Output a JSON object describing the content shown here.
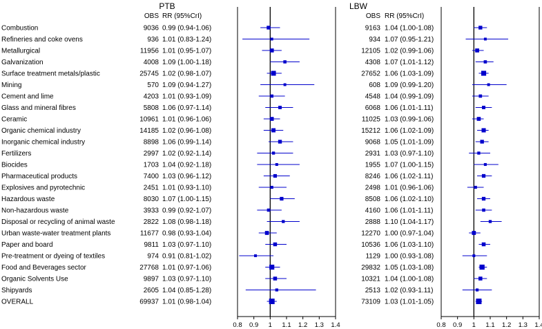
{
  "chart_data": [
    {
      "type": "forest",
      "title": "PTB",
      "column_headers": {
        "n": "OBS",
        "estimate": "RR (95%CrI)"
      },
      "reference_line": 1,
      "xlim": [
        0.8,
        1.4
      ],
      "xticks": [
        "0.8",
        "0.9",
        "1",
        "1.1",
        "1.2",
        "1.3",
        "1.4"
      ],
      "rows": [
        {
          "label": "Combustion",
          "obs": "9036",
          "text": "0.99 (0.94-1.06)",
          "rr": 0.99,
          "lo": 0.94,
          "hi": 1.06
        },
        {
          "label": "Refineries and coke ovens",
          "obs": "936",
          "text": "1.01 (0.83-1.24)",
          "rr": 1.01,
          "lo": 0.83,
          "hi": 1.24
        },
        {
          "label": "Metallurgical",
          "obs": "11956",
          "text": "1.01 (0.95-1.07)",
          "rr": 1.01,
          "lo": 0.95,
          "hi": 1.07
        },
        {
          "label": "Galvanization",
          "obs": "4008",
          "text": "1.09 (1.00-1.18)",
          "rr": 1.09,
          "lo": 1.0,
          "hi": 1.18
        },
        {
          "label": "Surface treatment metals/plastic",
          "obs": "25745",
          "text": "1.02 (0.98-1.07)",
          "rr": 1.02,
          "lo": 0.98,
          "hi": 1.07
        },
        {
          "label": "Mining",
          "obs": "570",
          "text": "1.09 (0.94-1.27)",
          "rr": 1.09,
          "lo": 0.94,
          "hi": 1.27
        },
        {
          "label": "Cement and lime",
          "obs": "4203",
          "text": "1.01 (0.93-1.09)",
          "rr": 1.01,
          "lo": 0.93,
          "hi": 1.09
        },
        {
          "label": "Glass and mineral fibres",
          "obs": "5808",
          "text": "1.06 (0.97-1.14)",
          "rr": 1.06,
          "lo": 0.97,
          "hi": 1.14
        },
        {
          "label": "Ceramic",
          "obs": "10961",
          "text": "1.01 (0.96-1.06)",
          "rr": 1.01,
          "lo": 0.96,
          "hi": 1.06
        },
        {
          "label": "Organic chemical industry",
          "obs": "14185",
          "text": "1.02 (0.96-1.08)",
          "rr": 1.02,
          "lo": 0.96,
          "hi": 1.08
        },
        {
          "label": "Inorganic chemical industry",
          "obs": "8898",
          "text": "1.06 (0.99-1.14)",
          "rr": 1.06,
          "lo": 0.99,
          "hi": 1.14
        },
        {
          "label": "Fertilizers",
          "obs": "2997",
          "text": "1.02 (0.92-1.14)",
          "rr": 1.02,
          "lo": 0.92,
          "hi": 1.14
        },
        {
          "label": "Biocides",
          "obs": "1703",
          "text": "1.04 (0.92-1.18)",
          "rr": 1.04,
          "lo": 0.92,
          "hi": 1.18
        },
        {
          "label": "Pharmaceutical products",
          "obs": "7400",
          "text": "1.03 (0.96-1.12)",
          "rr": 1.03,
          "lo": 0.96,
          "hi": 1.12
        },
        {
          "label": "Explosives and pyrotechnic",
          "obs": "2451",
          "text": "1.01 (0.93-1.10)",
          "rr": 1.01,
          "lo": 0.93,
          "hi": 1.1
        },
        {
          "label": "Hazardous waste",
          "obs": "8030",
          "text": "1.07 (1.00-1.15)",
          "rr": 1.07,
          "lo": 1.0,
          "hi": 1.15
        },
        {
          "label": "Non-hazardous waste",
          "obs": "3933",
          "text": "0.99 (0.92-1.07)",
          "rr": 0.99,
          "lo": 0.92,
          "hi": 1.07
        },
        {
          "label": "Disposal or recycling of animal waste",
          "obs": "2822",
          "text": "1.08 (0.98-1.18)",
          "rr": 1.08,
          "lo": 0.98,
          "hi": 1.18
        },
        {
          "label": "Urban waste-water treatment plants",
          "obs": "11677",
          "text": "0.98 (0.93-1.04)",
          "rr": 0.98,
          "lo": 0.93,
          "hi": 1.04
        },
        {
          "label": "Paper and board",
          "obs": "9811",
          "text": "1.03 (0.97-1.10)",
          "rr": 1.03,
          "lo": 0.97,
          "hi": 1.1
        },
        {
          "label": "Pre-treatment or dyeing of textiles",
          "obs": "974",
          "text": "0.91 (0.81-1.02)",
          "rr": 0.91,
          "lo": 0.81,
          "hi": 1.02
        },
        {
          "label": "Food and Beverages sector",
          "obs": "27768",
          "text": "1.01 (0.97-1.06)",
          "rr": 1.01,
          "lo": 0.97,
          "hi": 1.06
        },
        {
          "label": "Organic Solvents Use",
          "obs": "9897",
          "text": "1.03 (0.97-1.10)",
          "rr": 1.03,
          "lo": 0.97,
          "hi": 1.1
        },
        {
          "label": "Shipyards",
          "obs": "2605",
          "text": "1.04 (0.85-1.28)",
          "rr": 1.04,
          "lo": 0.85,
          "hi": 1.28
        },
        {
          "label": "OVERALL",
          "obs": "69937",
          "text": "1.01 (0.98-1.04)",
          "rr": 1.01,
          "lo": 0.98,
          "hi": 1.04
        }
      ]
    },
    {
      "type": "forest",
      "title": "LBW",
      "column_headers": {
        "n": "OBS",
        "estimate": "RR (95%CrI)"
      },
      "reference_line": 1,
      "xlim": [
        0.8,
        1.4
      ],
      "xticks": [
        "0.8",
        "0.9",
        "1",
        "1.1",
        "1.2",
        "1.3",
        "1.4"
      ],
      "rows": [
        {
          "label": "Combustion",
          "obs": "9163",
          "text": "1.04 (1.00-1.08)",
          "rr": 1.04,
          "lo": 1.0,
          "hi": 1.08
        },
        {
          "label": "Refineries and coke ovens",
          "obs": "934",
          "text": "1.07 (0.95-1.21)",
          "rr": 1.07,
          "lo": 0.95,
          "hi": 1.21
        },
        {
          "label": "Metallurgical",
          "obs": "12105",
          "text": "1.02 (0.99-1.06)",
          "rr": 1.02,
          "lo": 0.99,
          "hi": 1.06
        },
        {
          "label": "Galvanization",
          "obs": "4308",
          "text": "1.07 (1.01-1.12)",
          "rr": 1.07,
          "lo": 1.01,
          "hi": 1.12
        },
        {
          "label": "Surface treatment metals/plastic",
          "obs": "27652",
          "text": "1.06 (1.03-1.09)",
          "rr": 1.06,
          "lo": 1.03,
          "hi": 1.09
        },
        {
          "label": "Mining",
          "obs": "608",
          "text": "1.09 (0.99-1.20)",
          "rr": 1.09,
          "lo": 0.99,
          "hi": 1.2
        },
        {
          "label": "Cement and lime",
          "obs": "4548",
          "text": "1.04 (0.99-1.09)",
          "rr": 1.04,
          "lo": 0.99,
          "hi": 1.09
        },
        {
          "label": "Glass and mineral fibres",
          "obs": "6068",
          "text": "1.06 (1.01-1.11)",
          "rr": 1.06,
          "lo": 1.01,
          "hi": 1.11
        },
        {
          "label": "Ceramic",
          "obs": "11025",
          "text": "1.03 (0.99-1.06)",
          "rr": 1.03,
          "lo": 0.99,
          "hi": 1.06
        },
        {
          "label": "Organic chemical industry",
          "obs": "15212",
          "text": "1.06 (1.02-1.09)",
          "rr": 1.06,
          "lo": 1.02,
          "hi": 1.09
        },
        {
          "label": "Inorganic chemical industry",
          "obs": "9068",
          "text": "1.05 (1.01-1.09)",
          "rr": 1.05,
          "lo": 1.01,
          "hi": 1.09
        },
        {
          "label": "Fertilizers",
          "obs": "2931",
          "text": "1.03 (0.97-1.10)",
          "rr": 1.03,
          "lo": 0.97,
          "hi": 1.1
        },
        {
          "label": "Biocides",
          "obs": "1955",
          "text": "1.07 (1.00-1.15)",
          "rr": 1.07,
          "lo": 1.0,
          "hi": 1.15
        },
        {
          "label": "Pharmaceutical products",
          "obs": "8246",
          "text": "1.06 (1.02-1.11)",
          "rr": 1.06,
          "lo": 1.02,
          "hi": 1.11
        },
        {
          "label": "Explosives and pyrotechnic",
          "obs": "2498",
          "text": "1.01 (0.96-1.06)",
          "rr": 1.01,
          "lo": 0.96,
          "hi": 1.06
        },
        {
          "label": "Hazardous waste",
          "obs": "8508",
          "text": "1.06 (1.02-1.10)",
          "rr": 1.06,
          "lo": 1.02,
          "hi": 1.1
        },
        {
          "label": "Non-hazardous waste",
          "obs": "4160",
          "text": "1.06 (1.01-1.11)",
          "rr": 1.06,
          "lo": 1.01,
          "hi": 1.11
        },
        {
          "label": "Disposal or recycling of animal waste",
          "obs": "2888",
          "text": "1.10 (1.04-1.17)",
          "rr": 1.1,
          "lo": 1.04,
          "hi": 1.17
        },
        {
          "label": "Urban waste-water treatment plants",
          "obs": "12270",
          "text": "1.00 (0.97-1.04)",
          "rr": 1.0,
          "lo": 0.97,
          "hi": 1.04
        },
        {
          "label": "Paper and board",
          "obs": "10536",
          "text": "1.06 (1.03-1.10)",
          "rr": 1.06,
          "lo": 1.03,
          "hi": 1.1
        },
        {
          "label": "Pre-treatment or dyeing of textiles",
          "obs": "1129",
          "text": "1.00 (0.93-1.08)",
          "rr": 1.0,
          "lo": 0.93,
          "hi": 1.08
        },
        {
          "label": "Food and Beverages sector",
          "obs": "29832",
          "text": "1.05 (1.03-1.08)",
          "rr": 1.05,
          "lo": 1.03,
          "hi": 1.08
        },
        {
          "label": "Organic Solvents Use",
          "obs": "10321",
          "text": "1.04 (1.00-1.08)",
          "rr": 1.04,
          "lo": 1.0,
          "hi": 1.08
        },
        {
          "label": "Shipyards",
          "obs": "2513",
          "text": "1.02 (0.93-1.11)",
          "rr": 1.02,
          "lo": 0.93,
          "hi": 1.11
        },
        {
          "label": "OVERALL",
          "obs": "73109",
          "text": "1.03 (1.01-1.05)",
          "rr": 1.03,
          "lo": 1.01,
          "hi": 1.05
        }
      ]
    }
  ],
  "colors": {
    "marker": "#0000cc",
    "ci_line": "#0000cc",
    "reference_line": "#000000",
    "axis": "#000000"
  }
}
